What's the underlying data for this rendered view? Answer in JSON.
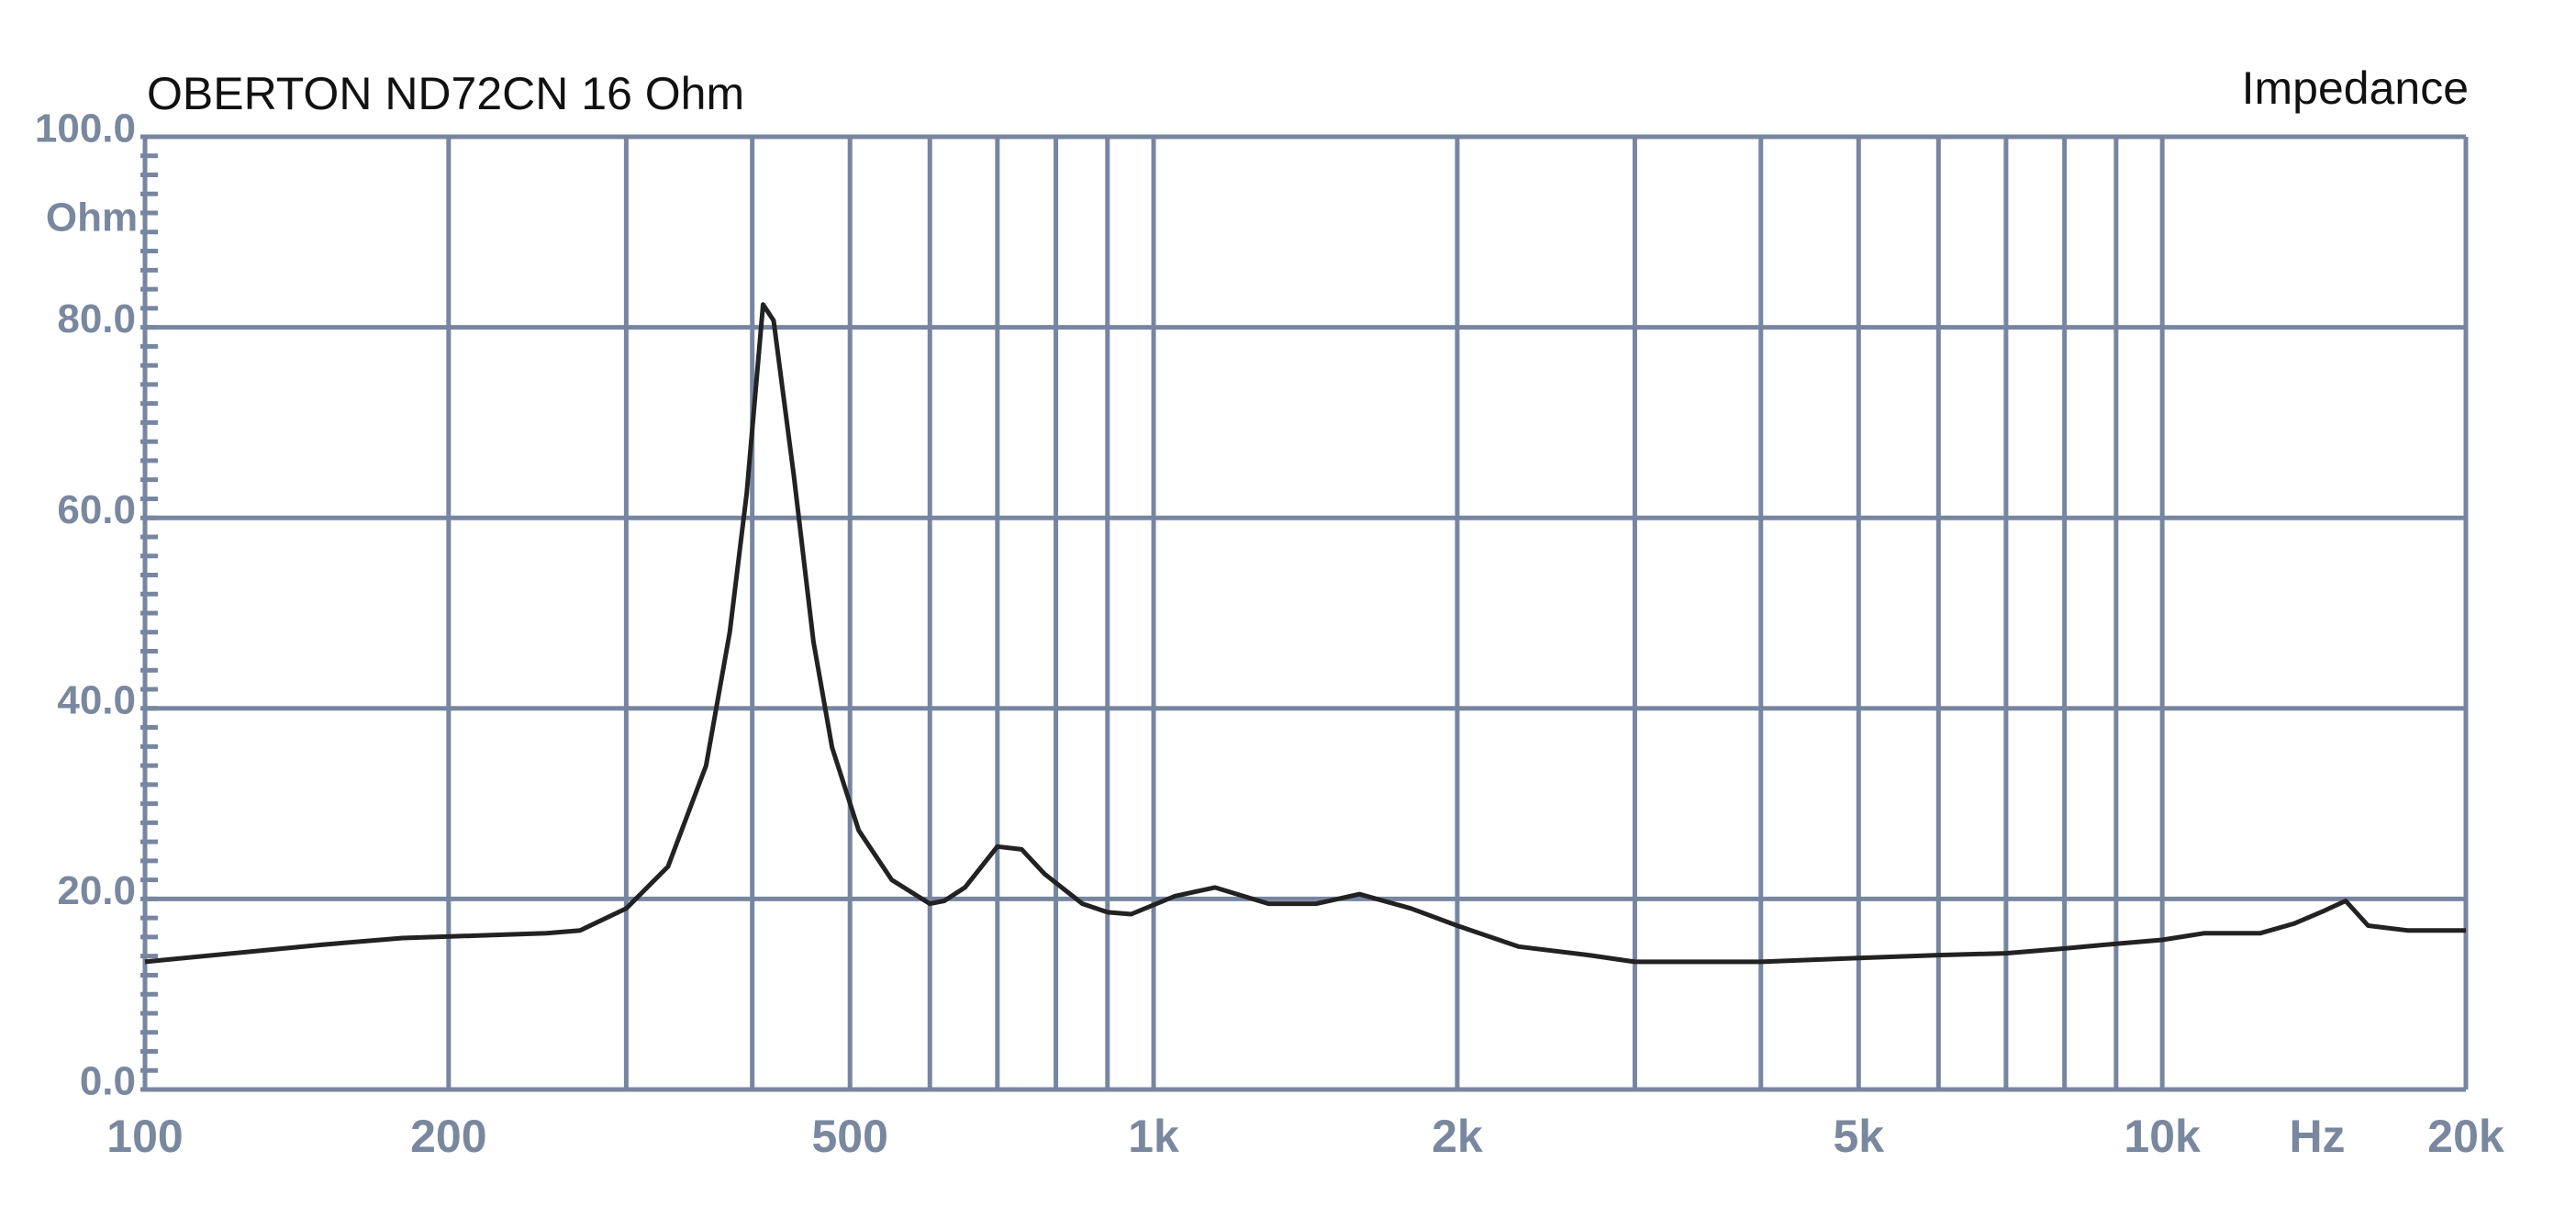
{
  "chart_data": {
    "type": "line",
    "title": "OBERTON ND72CN 16 Ohm",
    "subtitle": "Impedance",
    "y_label": "Ohm",
    "x_label": "Hz",
    "xscale": "log",
    "grid": true,
    "xlim": [
      100,
      20000
    ],
    "ylim": [
      0,
      100
    ],
    "xticks": [
      100,
      200,
      500,
      {
        "value": 1000,
        "label": "1k"
      },
      {
        "value": 2000,
        "label": "2k"
      },
      {
        "value": 5000,
        "label": "5k"
      },
      {
        "value": 10000,
        "label": "10k"
      },
      {
        "value": 20000,
        "label": "20k"
      }
    ],
    "xminor_ticks": [
      300,
      400,
      600,
      700,
      800,
      900,
      3000,
      4000,
      6000,
      7000,
      8000,
      9000
    ],
    "yticks": [
      {
        "value": 0,
        "label": "0.0"
      },
      {
        "value": 20,
        "label": "20.0"
      },
      {
        "value": 40,
        "label": "40.0"
      },
      {
        "value": 60,
        "label": "60.0"
      },
      {
        "value": 80,
        "label": "80.0"
      },
      {
        "value": 100,
        "label": "100.0"
      }
    ],
    "yminor_step": 2,
    "x": [
      100,
      150,
      180,
      250,
      270,
      300,
      330,
      360,
      380,
      395,
      410,
      420,
      440,
      460,
      480,
      510,
      550,
      600,
      620,
      650,
      700,
      740,
      780,
      850,
      900,
      950,
      1050,
      1150,
      1300,
      1450,
      1600,
      1800,
      2000,
      2300,
      2700,
      3000,
      4000,
      5000,
      6000,
      7000,
      8000,
      9000,
      10000,
      11000,
      12500,
      13500,
      14500,
      15200,
      16000,
      17500,
      20000
    ],
    "series": [
      {
        "name": "Impedance",
        "color": "#222222",
        "values": [
          13.4,
          15.2,
          15.9,
          16.4,
          16.7,
          19.0,
          23.4,
          34,
          48,
          62.6,
          82.4,
          80.7,
          64.3,
          47,
          35.9,
          27.2,
          22,
          19.5,
          19.8,
          21.2,
          25.5,
          25.2,
          22.6,
          19.5,
          18.6,
          18.4,
          20.3,
          21.2,
          19.5,
          19.5,
          20.5,
          19,
          17.2,
          15,
          14.1,
          13.4,
          13.4,
          13.8,
          14.1,
          14.3,
          14.8,
          15.3,
          15.7,
          16.4,
          16.4,
          17.4,
          18.8,
          19.8,
          17.2,
          16.7,
          16.7
        ]
      }
    ]
  }
}
